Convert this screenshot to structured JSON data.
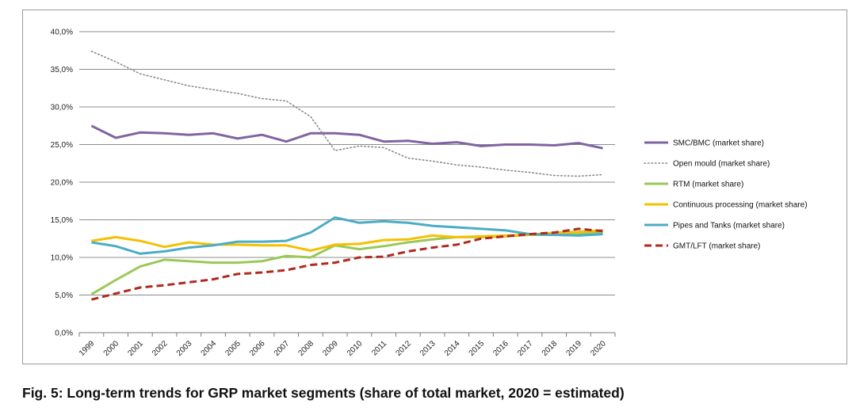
{
  "caption": "Fig.  5: Long-term trends for GRP market segments (share of total market, 2020 = estimated)",
  "chart_data": {
    "type": "line",
    "title": "",
    "xlabel": "",
    "ylabel": "",
    "ylim": [
      0,
      40
    ],
    "y_ticks": [
      "0,0%",
      "5,0%",
      "10,0%",
      "15,0%",
      "20,0%",
      "25,0%",
      "30,0%",
      "35,0%",
      "40,0%"
    ],
    "y_tick_values": [
      0,
      5,
      10,
      15,
      20,
      25,
      30,
      35,
      40
    ],
    "grid": true,
    "legend_position": "right",
    "categories": [
      "1999",
      "2000",
      "2001",
      "2002",
      "2003",
      "2004",
      "2005",
      "2006",
      "2007",
      "2008",
      "2009",
      "2010",
      "2011",
      "2012",
      "2013",
      "2014",
      "2015",
      "2016",
      "2017",
      "2018",
      "2019",
      "2020"
    ],
    "series": [
      {
        "name": "SMC/BMC (market share)",
        "color": "#8064a2",
        "style": "solid",
        "values": [
          27.5,
          25.9,
          26.6,
          26.5,
          26.3,
          26.5,
          25.8,
          26.3,
          25.4,
          26.5,
          26.5,
          26.3,
          25.4,
          25.5,
          25.1,
          25.3,
          24.8,
          25.0,
          25.0,
          24.9,
          25.2,
          24.5
        ]
      },
      {
        "name": "Open mould  (market share)",
        "color": "#8a8a8a",
        "style": "dotted",
        "values": [
          37.4,
          36.0,
          34.4,
          33.6,
          32.8,
          32.3,
          31.8,
          31.1,
          30.8,
          28.7,
          24.2,
          24.8,
          24.6,
          23.2,
          22.8,
          22.3,
          22.0,
          21.6,
          21.3,
          20.9,
          20.8,
          21.0
        ]
      },
      {
        "name": "RTM  (market share)",
        "color": "#9bc857",
        "style": "solid",
        "values": [
          5.1,
          7.0,
          8.8,
          9.7,
          9.5,
          9.3,
          9.3,
          9.5,
          10.2,
          10.0,
          11.6,
          11.1,
          11.5,
          12.0,
          12.4,
          12.7,
          12.7,
          12.8,
          13.0,
          13.0,
          13.1,
          13.3
        ]
      },
      {
        "name": "Continuous processing  (market share)",
        "color": "#f5c000",
        "style": "solid",
        "values": [
          12.2,
          12.7,
          12.2,
          11.4,
          12.0,
          11.7,
          11.7,
          11.6,
          11.6,
          10.9,
          11.7,
          11.8,
          12.3,
          12.4,
          12.9,
          12.7,
          12.8,
          12.9,
          13.0,
          13.3,
          13.4,
          13.6
        ]
      },
      {
        "name": "Pipes and Tanks  (market share)",
        "color": "#4bacc6",
        "style": "solid",
        "values": [
          12.0,
          11.5,
          10.5,
          10.8,
          11.3,
          11.6,
          12.1,
          12.1,
          12.2,
          13.3,
          15.3,
          14.6,
          14.8,
          14.6,
          14.2,
          14.0,
          13.8,
          13.6,
          13.1,
          13.0,
          12.9,
          13.1
        ]
      },
      {
        "name": "GMT/LFT  (market share)",
        "color": "#b02a1f",
        "style": "dashed",
        "values": [
          4.4,
          5.2,
          6.0,
          6.3,
          6.7,
          7.1,
          7.8,
          8.0,
          8.3,
          9.0,
          9.3,
          10.0,
          10.1,
          10.8,
          11.3,
          11.7,
          12.5,
          12.8,
          13.1,
          13.3,
          13.8,
          13.5
        ]
      }
    ]
  }
}
